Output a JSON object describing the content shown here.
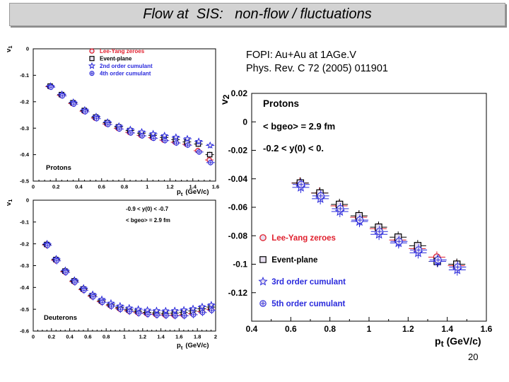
{
  "slide": {
    "title": "Flow at  SIS:   non-flow / fluctuations",
    "reference_line1": "FOPI:  Au+Au at 1AGe.V",
    "reference_line2": "Phys. Rev. C 72 (2005) 011901",
    "page_number": "20"
  },
  "colors": {
    "lee_yang": "#e0202e",
    "event_plane": "#000000",
    "cumulant": "#2a2adc",
    "marker_fill": "#e8e0f0"
  },
  "chart_data": [
    {
      "id": "top-left",
      "type": "scatter",
      "xlabel": "pt (GeV/c)",
      "ylabel": "v1",
      "xlim": [
        0,
        1.6
      ],
      "ylim": [
        -0.5,
        0
      ],
      "xticks": [
        "0",
        "0.2",
        "0.4",
        "0.6",
        "0.8",
        "1",
        "1.2",
        "1.4",
        "1.6"
      ],
      "yticks": [
        "0",
        "-0.1",
        "-0.2",
        "-0.3",
        "-0.4",
        "-0.5"
      ],
      "annotations": [
        "Protons"
      ],
      "legend": [
        "Lee-Yang zeroes",
        "Event-plane",
        "2nd order cumulant",
        "4th order cumulant"
      ],
      "legend_position": "top-right",
      "x": [
        0.15,
        0.25,
        0.35,
        0.45,
        0.55,
        0.65,
        0.75,
        0.85,
        0.95,
        1.05,
        1.15,
        1.25,
        1.35,
        1.45,
        1.55
      ],
      "series": [
        {
          "name": "Lee-Yang zeroes",
          "marker": "circle",
          "values": [
            -0.143,
            -0.176,
            -0.207,
            -0.236,
            -0.262,
            -0.284,
            -0.301,
            -0.316,
            -0.327,
            -0.336,
            -0.345,
            -0.353,
            -0.361,
            -0.385,
            -0.42
          ]
        },
        {
          "name": "Event-plane",
          "marker": "square",
          "values": [
            -0.141,
            -0.173,
            -0.204,
            -0.233,
            -0.258,
            -0.279,
            -0.295,
            -0.309,
            -0.319,
            -0.327,
            -0.335,
            -0.343,
            -0.352,
            -0.36,
            -0.4
          ]
        },
        {
          "name": "2nd order cumulant",
          "marker": "star",
          "values": [
            -0.141,
            -0.172,
            -0.202,
            -0.231,
            -0.256,
            -0.277,
            -0.292,
            -0.305,
            -0.314,
            -0.321,
            -0.328,
            -0.334,
            -0.34,
            -0.35,
            -0.365
          ]
        },
        {
          "name": "4th order cumulant",
          "marker": "diamond",
          "values": [
            -0.145,
            -0.178,
            -0.209,
            -0.238,
            -0.264,
            -0.286,
            -0.303,
            -0.318,
            -0.329,
            -0.338,
            -0.347,
            -0.356,
            -0.364,
            -0.39,
            -0.43
          ]
        }
      ]
    },
    {
      "id": "bottom-left",
      "type": "scatter",
      "xlabel": "pt (GeV/c)",
      "ylabel": "v1",
      "xlim": [
        0,
        2
      ],
      "ylim": [
        -0.6,
        0
      ],
      "xticks": [
        "0",
        "0.2",
        "0.4",
        "0.6",
        "0.8",
        "1",
        "1.2",
        "1.4",
        "1.6",
        "1.8",
        "2"
      ],
      "yticks": [
        "0",
        "-0.1",
        "-0.2",
        "-0.3",
        "-0.4",
        "-0.5",
        "-0.6"
      ],
      "annotations": [
        "-0.9 < y(0) < -0.7",
        "< bgeo> = 2.9 fm",
        "Deuterons"
      ],
      "x": [
        0.15,
        0.25,
        0.35,
        0.45,
        0.55,
        0.65,
        0.75,
        0.85,
        0.95,
        1.05,
        1.15,
        1.25,
        1.35,
        1.45,
        1.55,
        1.65,
        1.75,
        1.85,
        1.95
      ],
      "series": [
        {
          "name": "Lee-Yang zeroes",
          "marker": "circle",
          "values": [
            -0.205,
            -0.275,
            -0.328,
            -0.373,
            -0.41,
            -0.44,
            -0.465,
            -0.483,
            -0.497,
            -0.507,
            -0.515,
            -0.52,
            -0.524,
            -0.526,
            -0.527,
            -0.526,
            -0.52,
            -0.51,
            -0.5
          ]
        },
        {
          "name": "Event-plane",
          "marker": "square",
          "values": [
            -0.203,
            -0.272,
            -0.325,
            -0.37,
            -0.407,
            -0.437,
            -0.461,
            -0.479,
            -0.492,
            -0.502,
            -0.509,
            -0.514,
            -0.517,
            -0.519,
            -0.518,
            -0.515,
            -0.508,
            -0.498,
            -0.49
          ]
        },
        {
          "name": "2nd order cumulant",
          "marker": "star",
          "values": [
            -0.2,
            -0.269,
            -0.322,
            -0.367,
            -0.403,
            -0.432,
            -0.455,
            -0.472,
            -0.485,
            -0.494,
            -0.5,
            -0.504,
            -0.506,
            -0.507,
            -0.506,
            -0.503,
            -0.497,
            -0.488,
            -0.48
          ]
        },
        {
          "name": "4th order cumulant",
          "marker": "diamond",
          "values": [
            -0.207,
            -0.278,
            -0.331,
            -0.376,
            -0.413,
            -0.443,
            -0.468,
            -0.486,
            -0.5,
            -0.51,
            -0.518,
            -0.523,
            -0.527,
            -0.529,
            -0.53,
            -0.53,
            -0.525,
            -0.515,
            -0.505
          ]
        }
      ]
    },
    {
      "id": "right",
      "type": "scatter",
      "xlabel": "pt (GeV/c)",
      "ylabel": "v2",
      "xlim": [
        0.4,
        1.6
      ],
      "ylim": [
        -0.14,
        0.02
      ],
      "xticks": [
        "0.4",
        "0.6",
        "0.8",
        "1",
        "1.2",
        "1.4",
        "1.6"
      ],
      "yticks": [
        "0.02",
        "0",
        "-0.02",
        "-0.04",
        "-0.06",
        "-0.08",
        "-0.1",
        "-0.12"
      ],
      "annotations": [
        "Protons",
        "< bgeo> = 2.9 fm",
        "-0.2 < y(0) < 0."
      ],
      "legend": [
        "Lee-Yang zeroes",
        "Event-plane",
        "3rd order cumulant",
        "5th order cumulant"
      ],
      "legend_position": "bottom-left",
      "x": [
        0.65,
        0.75,
        0.85,
        0.95,
        1.05,
        1.15,
        1.25,
        1.35,
        1.45
      ],
      "series": [
        {
          "name": "Lee-Yang zeroes",
          "marker": "circle",
          "values": [
            -0.043,
            -0.05,
            -0.059,
            -0.067,
            -0.075,
            -0.083,
            -0.089,
            -0.095,
            -0.101
          ]
        },
        {
          "name": "Event-plane",
          "marker": "square",
          "values": [
            -0.043,
            -0.05,
            -0.058,
            -0.066,
            -0.074,
            -0.081,
            -0.087,
            -0.098,
            -0.1
          ]
        },
        {
          "name": "3rd order cumulant",
          "marker": "star",
          "values": [
            -0.046,
            -0.054,
            -0.063,
            -0.07,
            -0.079,
            -0.085,
            -0.092,
            -0.098,
            -0.104
          ]
        },
        {
          "name": "5th order cumulant",
          "marker": "diamond",
          "values": [
            -0.044,
            -0.052,
            -0.061,
            -0.069,
            -0.077,
            -0.084,
            -0.09,
            -0.097,
            -0.102
          ]
        }
      ]
    }
  ]
}
